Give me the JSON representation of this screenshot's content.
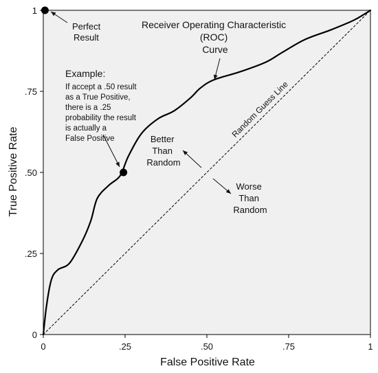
{
  "chart_data": {
    "type": "line",
    "title": "",
    "xlabel": "False Positive Rate",
    "ylabel": "True Positive Rate",
    "xlim": [
      0,
      1
    ],
    "ylim": [
      0,
      1
    ],
    "grid": false,
    "background": "#f0f0f0",
    "x_ticks": [
      {
        "value": 0,
        "label": "0"
      },
      {
        "value": 0.25,
        "label": ".25"
      },
      {
        "value": 0.5,
        "label": ".50"
      },
      {
        "value": 0.75,
        "label": ".75"
      },
      {
        "value": 1,
        "label": "1"
      }
    ],
    "y_ticks": [
      {
        "value": 0,
        "label": "0"
      },
      {
        "value": 0.25,
        "label": ".25"
      },
      {
        "value": 0.5,
        "label": ".50"
      },
      {
        "value": 0.75,
        "label": ".75"
      },
      {
        "value": 1,
        "label": "1"
      }
    ],
    "series": [
      {
        "style": "solid",
        "color": "#000000",
        "x": [
          0,
          0.01,
          0.025,
          0.045,
          0.08,
          0.12,
          0.145,
          0.165,
          0.2,
          0.235,
          0.26,
          0.3,
          0.35,
          0.4,
          0.45,
          0.48,
          0.52,
          0.6,
          0.68,
          0.73,
          0.8,
          0.88,
          0.95,
          1.0
        ],
        "y": [
          0,
          0.09,
          0.17,
          0.2,
          0.22,
          0.29,
          0.35,
          0.42,
          0.46,
          0.49,
          0.55,
          0.62,
          0.665,
          0.69,
          0.73,
          0.76,
          0.785,
          0.81,
          0.84,
          0.87,
          0.91,
          0.94,
          0.97,
          1.0
        ]
      },
      {
        "name": "Random Guess Line",
        "style": "dashed",
        "color": "#000000",
        "x": [
          0,
          1
        ],
        "y": [
          0,
          1
        ]
      }
    ],
    "points": [
      {
        "x": 0.005,
        "y": 1.0
      },
      {
        "x": 0.245,
        "y": 0.5
      }
    ],
    "annotations": {
      "perfect": [
        "Perfect",
        "Result"
      ],
      "roc": [
        "Receiver Operating Characteristic",
        "(ROC)",
        "Curve"
      ],
      "example_heading": "Example:",
      "example": [
        "If accept a .50 result",
        "as a True Positive,",
        "there is a .25",
        "probability the result",
        "is actually a",
        "False Positive"
      ],
      "better": [
        "Better",
        "Than",
        "Random"
      ],
      "worse": [
        "Worse",
        "Than",
        "Random"
      ],
      "random_guess": "Random Guess Line"
    }
  }
}
